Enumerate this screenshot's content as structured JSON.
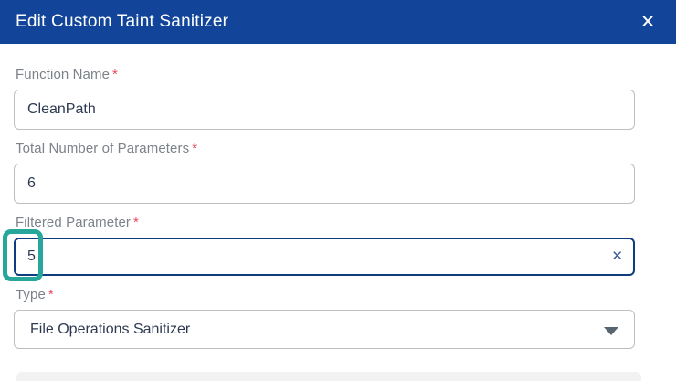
{
  "dialog": {
    "title": "Edit Custom Taint Sanitizer"
  },
  "ui": {
    "required_mark": "*",
    "close_glyph": "✕",
    "clear_glyph": "✕"
  },
  "colors": {
    "header_bg": "#12459A",
    "label_gray": "#7C828A",
    "required_red": "#E9485E",
    "input_border": "#BCBEC2",
    "input_text": "#2D3A52",
    "focus_border": "#0E3D7D",
    "highlight_teal": "#27A69C",
    "clear_icon_blue": "#3A5C99",
    "caret_slate": "#566570"
  },
  "fields": [
    {
      "label": "Function Name",
      "required": true,
      "type": "text",
      "value": "CleanPath"
    },
    {
      "label": "Total Number of Parameters",
      "required": true,
      "type": "text",
      "value": "6"
    },
    {
      "label": "Filtered Parameter",
      "required": true,
      "type": "text",
      "value": "5",
      "focused": true,
      "clearable": true,
      "annotated": true
    },
    {
      "label": "Type",
      "required": true,
      "type": "select",
      "value": "File Operations Sanitizer"
    }
  ]
}
